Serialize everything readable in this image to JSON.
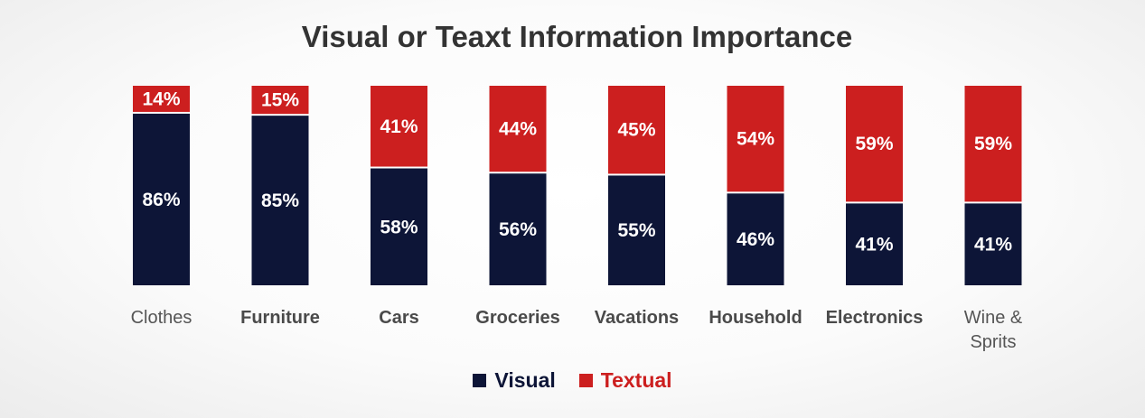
{
  "chart_data": {
    "type": "bar",
    "stacked": true,
    "title": "Visual or Teaxt Information Importance",
    "xlabel": "",
    "ylabel": "",
    "ylim": [
      0,
      100
    ],
    "categories": [
      "Clothes",
      "Furniture",
      "Cars",
      "Groceries",
      "Vacations",
      "Household",
      "Electronics",
      "Wine & Sprits"
    ],
    "series": [
      {
        "name": "Visual",
        "color": "#0d1537",
        "values": [
          86,
          85,
          58,
          56,
          55,
          46,
          41,
          41
        ]
      },
      {
        "name": "Textual",
        "color": "#cc1f1f",
        "values": [
          14,
          15,
          41,
          44,
          45,
          54,
          59,
          59
        ]
      }
    ],
    "data_labels": [
      [
        "86%",
        "85%",
        "58%",
        "56%",
        "55%",
        "46%",
        "41%",
        "41%"
      ],
      [
        "14%",
        "15%",
        "41%",
        "44%",
        "45%",
        "54%",
        "59%",
        "59%"
      ]
    ],
    "grid": false,
    "legend_position": "bottom-center"
  }
}
